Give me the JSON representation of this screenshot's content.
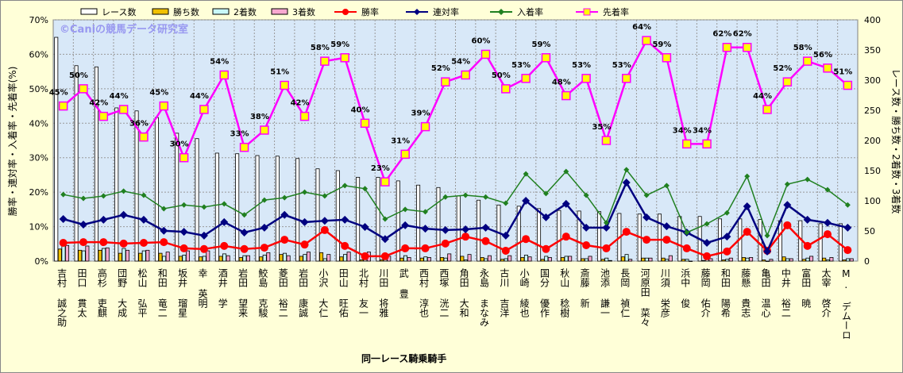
{
  "chart_data": {
    "type": "bar",
    "title": "",
    "watermark": "©Caniの競馬データ研究室",
    "xlabel": "同一レース騎乗騎手",
    "ylabel_left": "勝率・連対率・入着率・先着率(%)",
    "ylabel_right": "レース数・勝ち数・2着数・3着数",
    "ylim_left": [
      0,
      70
    ],
    "ylim_right": [
      0,
      400
    ],
    "yticks_left": [
      "0%",
      "10%",
      "20%",
      "30%",
      "40%",
      "50%",
      "60%",
      "70%"
    ],
    "yticks_right": [
      "0",
      "50",
      "100",
      "150",
      "200",
      "250",
      "300",
      "350",
      "400"
    ],
    "grid": true,
    "legend_position": "top",
    "legend": [
      "レース数",
      "勝ち数",
      "2着数",
      "3着数",
      "勝率",
      "連対率",
      "入着率",
      "先着率"
    ],
    "colors": {
      "races": "#ffffff",
      "wins": "#f0c000",
      "second": "#c8f8f8",
      "third": "#f8a8d0",
      "win_rate": "#ff0000",
      "rentai_rate": "#000080",
      "nyuchaku_rate": "#208020",
      "sencha_rate": "#ff00ff",
      "sencha_marker": "#ffff00",
      "plot_bg": "#d8e8f8"
    },
    "categories": [
      "吉村 誠之助",
      "田口 貫太",
      "高杉 吏麒",
      "団野 大成",
      "松山 弘平",
      "和田 竜二",
      "坂井 瑠星",
      "幸 英明",
      "酒井 学",
      "岩田 望来",
      "鮫島 克駿",
      "菱田 裕二",
      "岩田 康誠",
      "小沢 大仁",
      "田山 旺佑",
      "北村 友一",
      "川田 将雅",
      "武 豊",
      "西村 淳也",
      "西塚 洸二",
      "角田 大和",
      "永島 まなみ",
      "古川 吉洋",
      "小崎 綾也",
      "国分 優作",
      "秋山 稔樹",
      "斎藤 新",
      "池添 謙一",
      "長岡 禎仁",
      "河原田 菜々",
      "川須 栄彦",
      "浜中 俊",
      "藤岡 佑介",
      "和田 陽希",
      "藤懸 貴志",
      "亀田 温心",
      "中井 裕二",
      "富田 暁",
      "太宰 啓介",
      "M. デムーロ"
    ],
    "series_bars": [
      {
        "name": "レース数",
        "axis": "right",
        "values": [
          371,
          324,
          322,
          254,
          249,
          238,
          212,
          203,
          179,
          178,
          175,
          174,
          170,
          153,
          150,
          139,
          139,
          133,
          126,
          122,
          108,
          101,
          93,
          91,
          87,
          84,
          83,
          82,
          79,
          78,
          78,
          74,
          74,
          70,
          70,
          69,
          67,
          67,
          62,
          62
        ]
      },
      {
        "name": "勝ち数",
        "axis": "right",
        "values": [
          20,
          18,
          18,
          13,
          13,
          13,
          8,
          7,
          8,
          6,
          7,
          11,
          8,
          14,
          7,
          2,
          2,
          5,
          5,
          6,
          8,
          6,
          3,
          6,
          3,
          6,
          4,
          3,
          7,
          5,
          5,
          3,
          1,
          2,
          6,
          2,
          7,
          3,
          5,
          2
        ]
      },
      {
        "name": "2着数",
        "axis": "right",
        "values": [
          26,
          17,
          21,
          21,
          17,
          8,
          10,
          8,
          12,
          9,
          10,
          13,
          11,
          4,
          11,
          12,
          7,
          9,
          7,
          5,
          2,
          4,
          4,
          10,
          8,
          8,
          4,
          5,
          11,
          5,
          3,
          3,
          3,
          3,
          5,
          0,
          4,
          5,
          2,
          4
        ]
      },
      {
        "name": "3着数",
        "axis": "right",
        "values": [
          26,
          25,
          22,
          18,
          18,
          15,
          17,
          17,
          9,
          9,
          14,
          9,
          15,
          11,
          15,
          15,
          8,
          6,
          6,
          12,
          11,
          9,
          9,
          7,
          6,
          8,
          8,
          1,
          3,
          5,
          9,
          0,
          4,
          5,
          6,
          3,
          4,
          8,
          6,
          4
        ]
      }
    ],
    "series_lines": [
      {
        "name": "勝率",
        "axis": "left",
        "values": [
          5.3,
          5.5,
          5.5,
          5.1,
          5.3,
          5.5,
          3.7,
          3.5,
          4.4,
          3.5,
          3.9,
          6.2,
          4.8,
          9.0,
          4.4,
          1.4,
          1.4,
          3.7,
          3.7,
          5.1,
          7.1,
          5.8,
          3.0,
          6.4,
          3.5,
          7.1,
          4.6,
          3.7,
          8.5,
          6.2,
          6.2,
          3.7,
          1.4,
          2.8,
          8.5,
          3.0,
          10.4,
          4.4,
          7.8,
          3.2
        ]
      },
      {
        "name": "連対率",
        "axis": "left",
        "values": [
          12.2,
          10.6,
          12.0,
          13.4,
          12.0,
          8.8,
          8.5,
          7.4,
          11.3,
          8.3,
          9.7,
          13.4,
          11.3,
          11.7,
          12.0,
          9.9,
          6.4,
          10.4,
          9.4,
          9.0,
          9.2,
          9.7,
          7.4,
          17.5,
          12.7,
          16.6,
          9.7,
          9.7,
          22.8,
          12.7,
          10.1,
          8.3,
          5.3,
          7.1,
          15.9,
          2.8,
          16.3,
          12.0,
          11.1,
          9.7
        ]
      },
      {
        "name": "入着率",
        "axis": "left",
        "values": [
          19.3,
          18.2,
          18.9,
          20.3,
          19.1,
          15.2,
          16.3,
          15.7,
          16.6,
          13.4,
          17.7,
          18.4,
          20.0,
          18.9,
          21.9,
          21.0,
          12.2,
          15.0,
          14.3,
          18.6,
          19.1,
          18.6,
          16.8,
          25.3,
          19.6,
          26.0,
          19.1,
          11.1,
          26.5,
          19.1,
          21.9,
          8.3,
          10.8,
          14.0,
          24.6,
          7.4,
          22.3,
          23.7,
          20.7,
          16.3
        ]
      },
      {
        "name": "先着率",
        "axis": "left",
        "values": [
          45,
          50,
          42,
          44,
          36,
          45,
          30,
          44,
          54,
          33,
          38,
          51,
          42,
          58,
          59,
          40,
          23,
          31,
          39,
          52,
          54,
          60,
          50,
          53,
          59,
          48,
          53,
          35,
          53,
          64,
          59,
          34,
          34,
          62,
          62,
          44,
          52,
          58,
          56,
          51
        ],
        "labels": [
          "45%",
          "50%",
          "42%",
          "44%",
          "36%",
          "45%",
          "30%",
          "44%",
          "54%",
          "33%",
          "38%",
          "51%",
          "42%",
          "58%",
          "59%",
          "40%",
          "23%",
          "31%",
          "39%",
          "52%",
          "54%",
          "60%",
          "50%",
          "53%",
          "59%",
          "48%",
          "53%",
          "35%",
          "53%",
          "64%",
          "59%",
          "34%",
          "34%",
          "62%",
          "62%",
          "44%",
          "52%",
          "58%",
          "56%",
          "51%"
        ]
      }
    ]
  }
}
